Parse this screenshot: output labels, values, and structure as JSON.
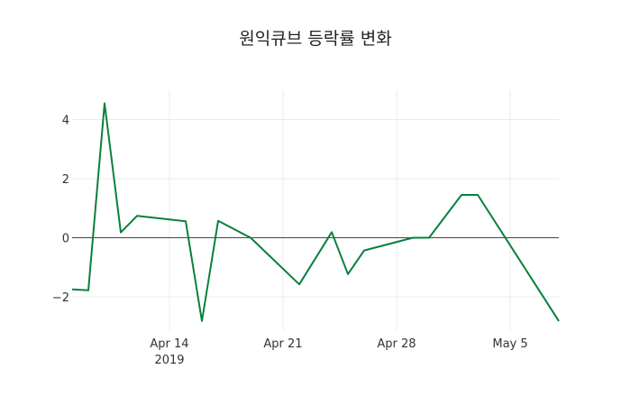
{
  "chart_data": {
    "type": "line",
    "title": "원익큐브 등락률 변화",
    "xlabel": "",
    "ylabel": "",
    "x": [
      "2019-04-08",
      "2019-04-09",
      "2019-04-10",
      "2019-04-11",
      "2019-04-12",
      "2019-04-15",
      "2019-04-16",
      "2019-04-17",
      "2019-04-19",
      "2019-04-22",
      "2019-04-24",
      "2019-04-25",
      "2019-04-26",
      "2019-04-29",
      "2019-04-30",
      "2019-05-02",
      "2019-05-03",
      "2019-05-08"
    ],
    "series": [
      {
        "name": "등락률",
        "color": "#08803e",
        "values": [
          -1.75,
          -1.78,
          4.55,
          0.18,
          0.74,
          0.56,
          -2.82,
          0.57,
          0.0,
          -1.58,
          0.19,
          -1.23,
          -0.43,
          0.0,
          0.0,
          1.45,
          1.45,
          -2.82
        ]
      }
    ],
    "x_ticks": [
      {
        "date": "2019-04-14",
        "label": "Apr 14",
        "sublabel": "2019"
      },
      {
        "date": "2019-04-21",
        "label": "Apr 21",
        "sublabel": ""
      },
      {
        "date": "2019-04-28",
        "label": "Apr 28",
        "sublabel": ""
      },
      {
        "date": "2019-05-05",
        "label": "May 5",
        "sublabel": ""
      }
    ],
    "y_ticks": [
      4,
      2,
      0,
      -2
    ],
    "y_tick_labels": [
      "4",
      "2",
      "0",
      "−2"
    ],
    "ylim": [
      -3.05,
      5.0
    ],
    "xlim": [
      "2019-04-08",
      "2019-05-08"
    ],
    "grid": true,
    "legend": "none"
  }
}
